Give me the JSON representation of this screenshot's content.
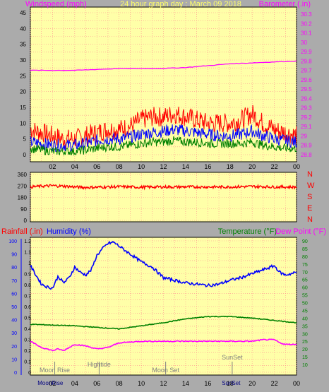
{
  "title": "24 hour graph day : March 09 2018",
  "colors": {
    "background": "#ababab",
    "plot_bg": "#ffffa8",
    "grid": "#ff9090",
    "wind_gust": "#ff0000",
    "wind_avg": "#0000ff",
    "wind_low": "#008000",
    "barometer": "#ff00ff",
    "direction": "#ff0000",
    "humidity": "#0000ff",
    "temperature": "#008000",
    "dewpoint": "#ff00ff",
    "title": "#ffff66"
  },
  "time_ticks": [
    "02",
    "04",
    "06",
    "08",
    "10",
    "12",
    "14",
    "16",
    "18",
    "20",
    "22",
    "00"
  ],
  "chart_data": [
    {
      "type": "line",
      "name": "wind-barometer",
      "left_label": "Windspeed (mph)",
      "right_label": "Barometer (.in)",
      "left_ticks": [
        "0",
        "5",
        "10",
        "15",
        "20",
        "25",
        "30",
        "35",
        "40",
        "45"
      ],
      "right_ticks": [
        "28.8",
        "28.9",
        "29",
        "29.1",
        "29.2",
        "29.3",
        "29.4",
        "29.5",
        "29.6",
        "29.7",
        "29.8",
        "29.9",
        "30",
        "30.1",
        "30.2",
        "30.3"
      ],
      "ylim_left": [
        0,
        45
      ],
      "ylim_right": [
        28.75,
        30.35
      ],
      "series": [
        {
          "key": "wind_gust",
          "hours": [
            0,
            1,
            2,
            3,
            4,
            5,
            6,
            7,
            8,
            9,
            10,
            11,
            12,
            13,
            14,
            15,
            16,
            17,
            18,
            19,
            20,
            21,
            22,
            23,
            24
          ],
          "values": [
            8,
            7,
            6,
            5,
            5,
            6,
            7,
            8,
            8,
            9,
            11,
            12,
            12,
            13,
            12,
            11,
            10,
            10,
            10,
            11,
            13,
            10,
            8,
            7,
            6
          ]
        },
        {
          "key": "wind_avg",
          "hours": [
            0,
            1,
            2,
            3,
            4,
            5,
            6,
            7,
            8,
            9,
            10,
            11,
            12,
            13,
            14,
            15,
            16,
            17,
            18,
            19,
            20,
            21,
            22,
            23,
            24
          ],
          "values": [
            4,
            3.5,
            3,
            3,
            3,
            3.5,
            4.5,
            5,
            5,
            5.5,
            6.5,
            7,
            7.5,
            8,
            7.5,
            7,
            6.5,
            6,
            6,
            6.5,
            7.5,
            6,
            5,
            4.5,
            4
          ]
        },
        {
          "key": "wind_low",
          "hours": [
            0,
            1,
            2,
            3,
            4,
            5,
            6,
            7,
            8,
            9,
            10,
            11,
            12,
            13,
            14,
            15,
            16,
            17,
            18,
            19,
            20,
            21,
            22,
            23,
            24
          ],
          "values": [
            2,
            1.5,
            1,
            1,
            1,
            1.5,
            2,
            2.5,
            2.5,
            3,
            3.5,
            4,
            4,
            4.5,
            4,
            4,
            3.5,
            3.5,
            3.5,
            3.5,
            4,
            3,
            2.5,
            2,
            2
          ]
        },
        {
          "key": "barometer",
          "hours": [
            0,
            2,
            4,
            6,
            8,
            10,
            12,
            14,
            16,
            18,
            20,
            22,
            24
          ],
          "values": [
            29.7,
            29.7,
            29.7,
            29.71,
            29.72,
            29.72,
            29.72,
            29.73,
            29.75,
            29.77,
            29.78,
            29.79,
            29.8
          ]
        }
      ]
    },
    {
      "type": "line",
      "name": "wind-direction",
      "left_ticks": [
        "0",
        "90",
        "180",
        "270",
        "360"
      ],
      "right_ticks": [
        "N",
        "W",
        "S",
        "E",
        "N"
      ],
      "ylim": [
        0,
        360
      ],
      "series": [
        {
          "key": "direction",
          "hours": [
            0,
            1,
            2,
            3,
            4,
            5,
            6,
            7,
            8,
            9,
            10,
            11,
            12,
            13,
            14,
            15,
            16,
            17,
            18,
            19,
            20,
            21,
            22,
            23,
            24
          ],
          "values": [
            262,
            268,
            272,
            268,
            262,
            258,
            260,
            262,
            264,
            262,
            260,
            262,
            262,
            262,
            263,
            262,
            262,
            262,
            262,
            264,
            266,
            264,
            262,
            262,
            260
          ]
        }
      ]
    },
    {
      "type": "line",
      "name": "rain-humidity-temperature",
      "left_label": "Rainfall (.in)",
      "left2_label": "Humidity (%)",
      "right_label": "Temperature (°F)",
      "right2_label": "Dew Point (°F)",
      "rain_ticks": [
        "0",
        "0.1",
        "0.2",
        "0.3",
        "0.4",
        "0.5",
        "0.6",
        "0.7",
        "0.8",
        "0.9",
        "1",
        "1.1",
        "1.2"
      ],
      "humidity_ticks": [
        "0",
        "10",
        "20",
        "30",
        "40",
        "50",
        "60",
        "70",
        "80",
        "90",
        "100"
      ],
      "temp_ticks": [
        "10",
        "15",
        "20",
        "25",
        "30",
        "35",
        "40",
        "45",
        "50",
        "55",
        "60",
        "65",
        "70",
        "75",
        "80",
        "85",
        "90"
      ],
      "ylim_humidity": [
        0,
        100
      ],
      "ylim_temp": [
        5,
        92
      ],
      "series": [
        {
          "key": "humidity",
          "hours": [
            0,
            0.5,
            1,
            1.5,
            2,
            2.5,
            3,
            3.5,
            4,
            4.5,
            5,
            5.5,
            6,
            6.5,
            7,
            7.5,
            8,
            9,
            10,
            11,
            12,
            13,
            14,
            15,
            16,
            17,
            18,
            19,
            20,
            21,
            22,
            22.5,
            23,
            24
          ],
          "values": [
            81,
            74,
            67,
            65,
            64,
            73,
            68,
            72,
            80,
            76,
            74,
            78,
            89,
            94,
            98,
            99,
            96,
            90,
            84,
            80,
            72,
            70,
            68,
            67,
            66,
            67,
            70,
            72,
            75,
            78,
            81,
            76,
            74,
            76
          ]
        },
        {
          "key": "temperature",
          "hours": [
            0,
            2,
            4,
            6,
            8,
            10,
            12,
            14,
            16,
            18,
            20,
            22,
            24
          ],
          "values": [
            36,
            35.5,
            35,
            34,
            33,
            35,
            37,
            39.5,
            41,
            41,
            40,
            38.5,
            37
          ]
        },
        {
          "key": "dewpoint",
          "hours": [
            0,
            0.5,
            1,
            1.5,
            2,
            2.5,
            3,
            3.5,
            4,
            5,
            6,
            7,
            8,
            10,
            12,
            14,
            16,
            18,
            20,
            21,
            22,
            22.5,
            23,
            24
          ],
          "values": [
            25,
            23,
            21,
            20,
            19,
            20,
            19,
            21,
            23,
            22,
            20,
            21,
            24,
            25,
            25,
            25,
            25,
            25,
            25,
            26,
            26,
            24,
            23,
            23
          ]
        }
      ],
      "annotations": [
        {
          "label": "Moon Rise",
          "hour": 2.2
        },
        {
          "label": "Hightide",
          "hour": 6.2
        },
        {
          "label": "Moon Set",
          "hour": 12.2
        },
        {
          "label": "SunSet",
          "hour": 18.2
        }
      ],
      "bottom_labels": [
        {
          "label": "MoonRise",
          "hour": 1.8
        },
        {
          "label": "SunSet",
          "hour": 18.1
        }
      ]
    }
  ]
}
